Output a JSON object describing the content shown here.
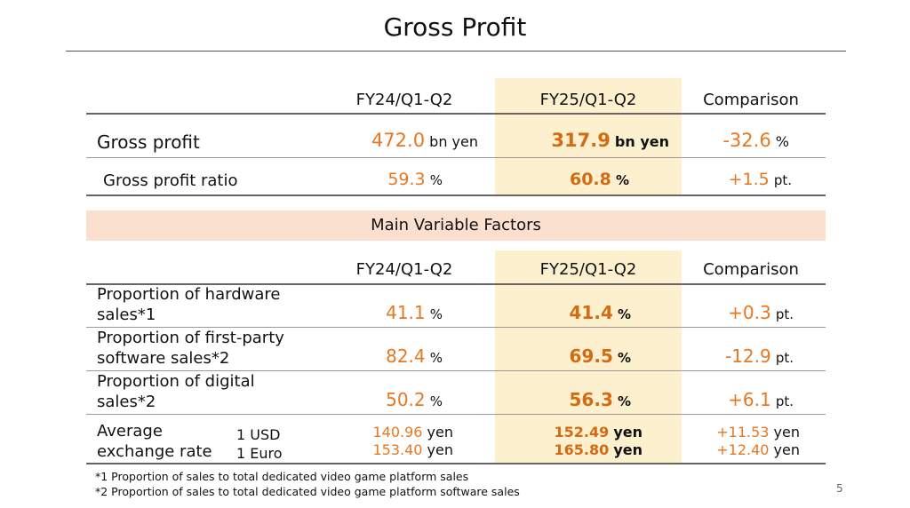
{
  "title": "Gross Profit",
  "page_number": "5",
  "columns": {
    "prev": "FY24/Q1-Q2",
    "curr": "FY25/Q1-Q2",
    "cmp": "Comparison"
  },
  "gross_profit": {
    "label": "Gross profit",
    "prev": "472.0",
    "prev_unit": "bn yen",
    "curr": "317.9",
    "curr_unit": "bn yen",
    "cmp": "-32.6",
    "cmp_unit": "%"
  },
  "gross_profit_ratio": {
    "label": "Gross profit ratio",
    "prev": "59.3",
    "prev_unit": "%",
    "curr": "60.8",
    "curr_unit": "%",
    "cmp": "+1.5",
    "cmp_unit": "pt."
  },
  "factors_heading": "Main Variable Factors",
  "factors": [
    {
      "label_line1": "Proportion of hardware",
      "label_line2": "sales*1",
      "prev": "41.1",
      "prev_unit": "%",
      "curr": "41.4",
      "curr_unit": "%",
      "cmp": "+0.3",
      "cmp_unit": "pt."
    },
    {
      "label_line1": "Proportion of first-party",
      "label_line2": "software sales*2",
      "prev": "82.4",
      "prev_unit": "%",
      "curr": "69.5",
      "curr_unit": "%",
      "cmp": "-12.9",
      "cmp_unit": "pt."
    },
    {
      "label_line1": "Proportion of digital",
      "label_line2": "sales*2",
      "prev": "50.2",
      "prev_unit": "%",
      "curr": "56.3",
      "curr_unit": "%",
      "cmp": "+6.1",
      "cmp_unit": "pt."
    }
  ],
  "exchange": {
    "label_line1": "Average",
    "label_line2": "exchange rate",
    "rows": [
      {
        "currency": "1 USD",
        "prev": "140.96",
        "curr": "152.49",
        "cmp": "+11.53",
        "unit": "yen"
      },
      {
        "currency": "1 Euro",
        "prev": "153.40",
        "curr": "165.80",
        "cmp": "+12.40",
        "unit": "yen"
      }
    ]
  },
  "footnotes": [
    "*1 Proportion of sales to total dedicated video game platform sales",
    "*2 Proportion of sales to total dedicated video game platform software sales"
  ]
}
